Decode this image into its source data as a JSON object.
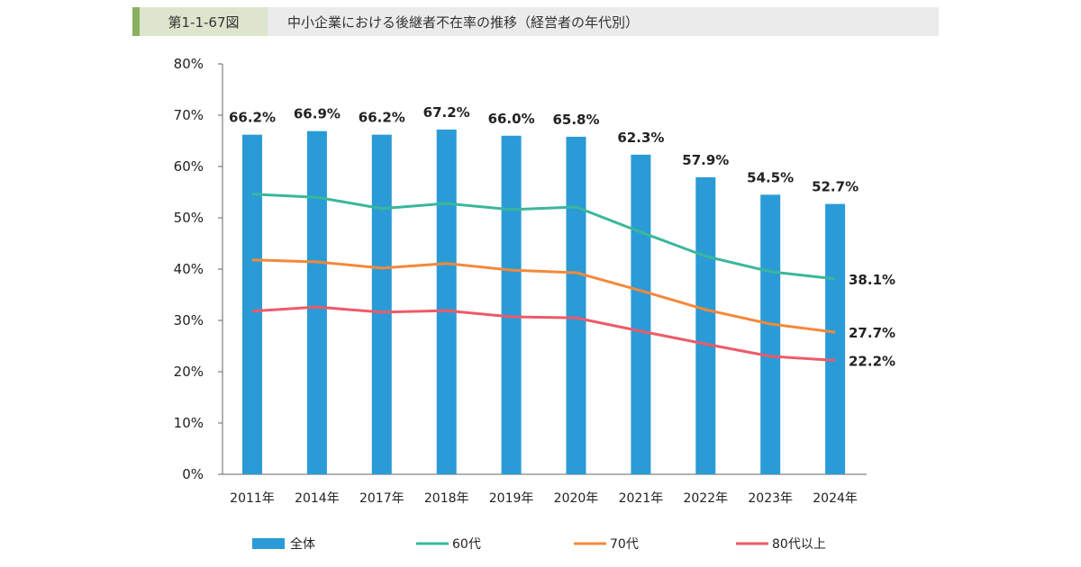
{
  "figure": {
    "number": "第1-1-67図",
    "title": "中小企業における後継者不在率の推移（経営者の年代別）"
  },
  "chart_data": {
    "type": "bar+line",
    "title": "中小企業における後継者不在率の推移（経営者の年代別）",
    "categories": [
      "2011年",
      "2014年",
      "2017年",
      "2018年",
      "2019年",
      "2020年",
      "2021年",
      "2022年",
      "2023年",
      "2024年"
    ],
    "ylim": [
      0,
      80
    ],
    "yticks": [
      "0%",
      "10%",
      "20%",
      "30%",
      "40%",
      "50%",
      "60%",
      "70%",
      "80%"
    ],
    "grid": false,
    "legend_position": "bottom",
    "series": [
      {
        "name": "全体",
        "type": "bar",
        "color": "#2a9bd6",
        "values": [
          66.2,
          66.9,
          66.2,
          67.2,
          66.0,
          65.8,
          62.3,
          57.9,
          54.5,
          52.7
        ],
        "labels": [
          "66.2%",
          "66.9%",
          "66.2%",
          "67.2%",
          "66.0%",
          "65.8%",
          "62.3%",
          "57.9%",
          "54.5%",
          "52.7%"
        ]
      },
      {
        "name": "60代",
        "type": "line",
        "color": "#3ab79a",
        "values": [
          54.6,
          54.0,
          51.8,
          52.8,
          51.6,
          52.1,
          47.2,
          42.5,
          39.5,
          38.1
        ],
        "end_label": "38.1%"
      },
      {
        "name": "70代",
        "type": "line",
        "color": "#f5883a",
        "values": [
          41.8,
          41.4,
          40.2,
          41.1,
          39.8,
          39.3,
          35.8,
          32.1,
          29.3,
          27.7
        ],
        "end_label": "27.7%"
      },
      {
        "name": "80代以上",
        "type": "line",
        "color": "#ee5a68",
        "values": [
          31.8,
          32.6,
          31.6,
          31.9,
          30.7,
          30.5,
          27.9,
          25.4,
          23.0,
          22.2
        ],
        "end_label": "22.2%"
      }
    ]
  }
}
